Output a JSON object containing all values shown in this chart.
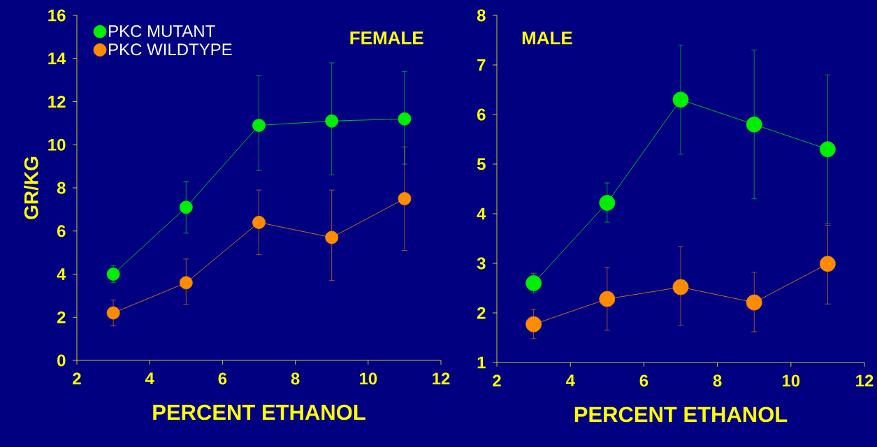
{
  "chart_data": [
    {
      "type": "line",
      "xlabel": "PERCENT ETHANOL",
      "ylabel": "GR/KG",
      "annotations": [
        "FEMALE"
      ],
      "x": [
        3,
        5,
        7,
        9,
        11
      ],
      "series": [
        {
          "name": "PKC MUTANT",
          "color": "#00ee00",
          "values": [
            4.0,
            7.1,
            10.9,
            11.1,
            11.2
          ],
          "errors": [
            [
              3.6,
              4.4
            ],
            [
              5.9,
              8.3
            ],
            [
              8.8,
              13.2
            ],
            [
              8.6,
              13.8
            ],
            [
              9.1,
              13.4
            ]
          ]
        },
        {
          "name": "PKC WILDTYPE",
          "color": "#ff8c00",
          "values": [
            2.2,
            3.6,
            6.4,
            5.7,
            7.5
          ],
          "errors": [
            [
              1.6,
              2.8
            ],
            [
              2.6,
              4.7
            ],
            [
              4.9,
              7.9
            ],
            [
              3.7,
              7.9
            ],
            [
              5.1,
              9.9
            ]
          ]
        }
      ],
      "xlim": [
        2,
        12
      ],
      "xticks": [
        2,
        4,
        6,
        8,
        10,
        12
      ],
      "ylim": [
        0,
        16
      ],
      "yticks": [
        0,
        2,
        4,
        6,
        8,
        10,
        12,
        14,
        16
      ],
      "legend": "top left",
      "marker": "circle",
      "line_style": "solid",
      "grid": false
    },
    {
      "type": "line",
      "xlabel": "PERCENT ETHANOL",
      "annotations": [
        "MALE"
      ],
      "x": [
        3,
        5,
        7,
        9,
        11
      ],
      "series": [
        {
          "color": "#00ee00",
          "values": [
            2.6,
            4.22,
            6.3,
            5.8,
            5.3
          ],
          "errors": [
            [
              2.4,
              2.8
            ],
            [
              3.83,
              4.62
            ],
            [
              5.2,
              7.4
            ],
            [
              4.3,
              7.3
            ],
            [
              3.8,
              6.8
            ]
          ]
        },
        {
          "color": "#ff8c00",
          "values": [
            1.77,
            2.28,
            2.52,
            2.21,
            2.99
          ],
          "errors": [
            [
              1.48,
              2.07
            ],
            [
              1.65,
              2.92
            ],
            [
              1.75,
              3.34
            ],
            [
              1.62,
              2.82
            ],
            [
              2.18,
              3.77
            ]
          ]
        }
      ],
      "xlim": [
        2,
        12
      ],
      "xticks": [
        2,
        4,
        6,
        8,
        10,
        12
      ],
      "ylim": [
        1,
        8
      ],
      "yticks": [
        1,
        2,
        3,
        4,
        5,
        6,
        7,
        8
      ],
      "marker": "circle",
      "line_style": "solid",
      "grid": false
    }
  ]
}
